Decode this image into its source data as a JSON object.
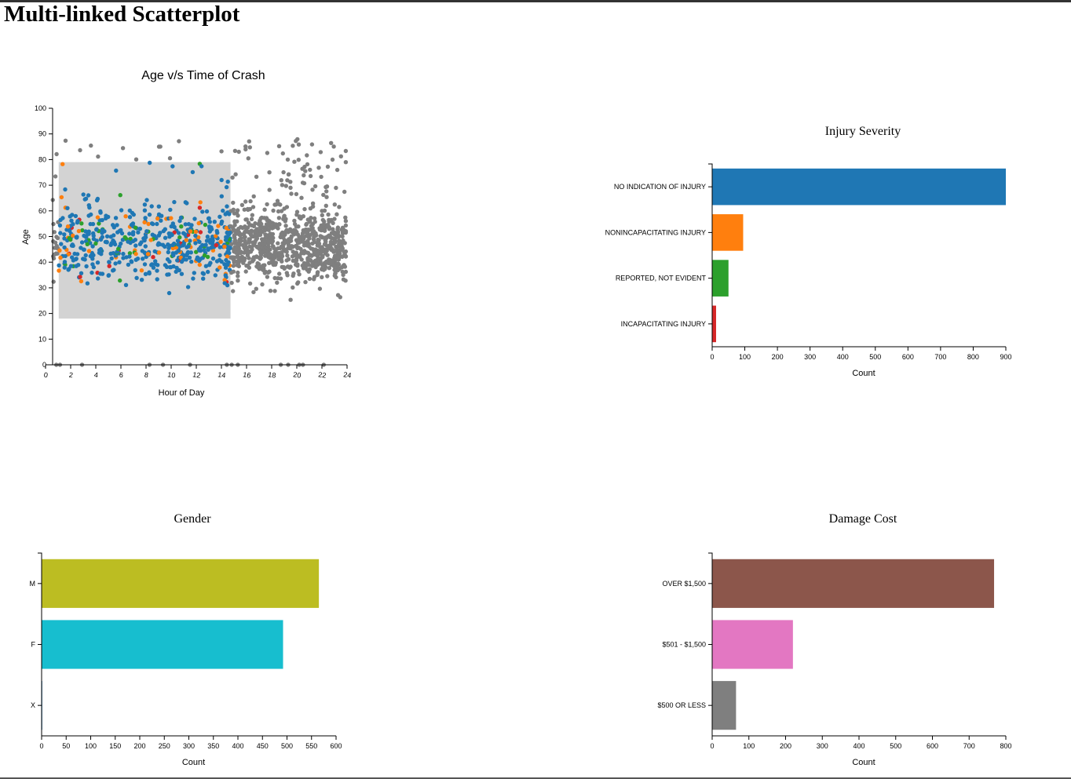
{
  "page": {
    "title": "Multi-linked Scatterplot"
  },
  "chart_data": [
    {
      "type": "scatter",
      "title": "Age v/s Time of Crash",
      "xlabel": "Hour of Day",
      "ylabel": "Age",
      "xlim": [
        0,
        24
      ],
      "ylim": [
        0,
        100
      ],
      "x_ticks": [
        0,
        2,
        4,
        6,
        8,
        10,
        12,
        14,
        16,
        18,
        20,
        22,
        24
      ],
      "y_ticks": [
        0,
        10,
        20,
        30,
        40,
        50,
        60,
        70,
        80,
        90,
        100
      ],
      "brush": {
        "x": [
          0.5,
          14.5
        ],
        "y": [
          18,
          79
        ]
      },
      "series_colors": {
        "selected_no_injury": "#1f77b4",
        "selected_nonincapacitating": "#ff7f0e",
        "selected_not_evident": "#2ca02c",
        "selected_incapacitating": "#d62728",
        "unselected": "#7f7f7f"
      },
      "selection_fill": "#d3d3d3",
      "point_count_approx": 1500
    },
    {
      "type": "bar",
      "orientation": "horizontal",
      "title": "Injury Severity",
      "xlabel": "Count",
      "categories": [
        "NO INDICATION OF INJURY",
        "NONINCAPACITATING INJURY",
        "REPORTED, NOT EVIDENT",
        "INCAPACITATING INJURY"
      ],
      "values": [
        900,
        95,
        50,
        12
      ],
      "colors": [
        "#1f77b4",
        "#ff7f0e",
        "#2ca02c",
        "#d62728"
      ],
      "xlim": [
        0,
        900
      ],
      "x_ticks": [
        0,
        100,
        200,
        300,
        400,
        500,
        600,
        700,
        800,
        900
      ]
    },
    {
      "type": "bar",
      "orientation": "horizontal",
      "title": "Gender",
      "xlabel": "Count",
      "categories": [
        "M",
        "F",
        "X"
      ],
      "values": [
        565,
        492,
        1
      ],
      "colors": [
        "#bcbd22",
        "#17becf",
        "#1f77b4"
      ],
      "xlim": [
        0,
        600
      ],
      "x_ticks": [
        0,
        50,
        100,
        150,
        200,
        250,
        300,
        350,
        400,
        450,
        500,
        550,
        600
      ]
    },
    {
      "type": "bar",
      "orientation": "horizontal",
      "title": "Damage Cost",
      "xlabel": "Count",
      "categories": [
        "OVER $1,500",
        "$501 - $1,500",
        "$500 OR LESS"
      ],
      "values": [
        768,
        220,
        65
      ],
      "colors": [
        "#8c564b",
        "#e377c2",
        "#7f7f7f"
      ],
      "xlim": [
        0,
        800
      ],
      "x_ticks": [
        0,
        100,
        200,
        300,
        400,
        500,
        600,
        700,
        800
      ]
    }
  ]
}
